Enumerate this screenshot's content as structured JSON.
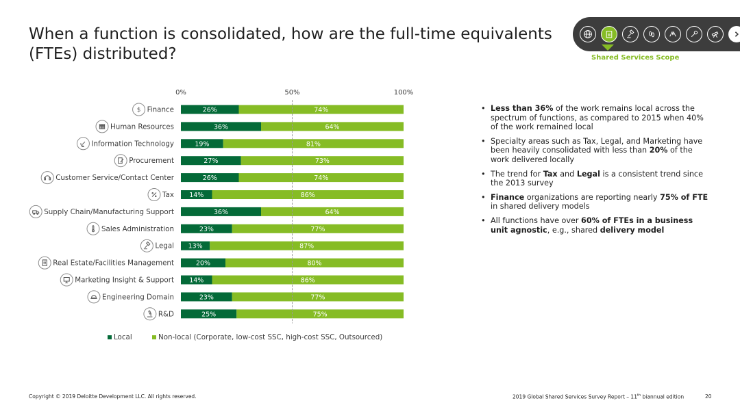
{
  "title": "When a function is consolidated, how are the full-time equivalents (FTEs) distributed?",
  "nav": {
    "icons": [
      "globe-icon",
      "clipboard-icon",
      "gavel-icon",
      "footprints-icon",
      "hands-icon",
      "wrench-icon",
      "telescope-icon",
      "chevron-right-icon"
    ],
    "active_index": 1,
    "label": "Shared Services Scope"
  },
  "colors": {
    "local": "#046a38",
    "nonlocal": "#86bc25",
    "nav_bg": "#3d3d3d"
  },
  "chart_data": {
    "type": "bar",
    "orientation": "horizontal",
    "stacked": true,
    "categories": [
      "Finance",
      "Human Resources",
      "Information Technology",
      "Procurement",
      "Customer Service/Contact Center",
      "Tax",
      "Supply Chain/Manufacturing Support",
      "Sales Administration",
      "Legal",
      "Real Estate/Facilities Management",
      "Marketing Insight & Support",
      "Engineering Domain",
      "R&D"
    ],
    "category_icons": [
      "dollar-icon",
      "people-icon",
      "satellite-icon",
      "document-pen-icon",
      "headset-icon",
      "percent-icon",
      "truck-icon",
      "thermometer-icon",
      "gavel-icon",
      "building-icon",
      "presentation-icon",
      "hardhat-icon",
      "microscope-icon"
    ],
    "series": [
      {
        "name": "Local",
        "values": [
          26,
          36,
          19,
          27,
          26,
          14,
          36,
          23,
          13,
          20,
          14,
          23,
          25
        ]
      },
      {
        "name": "Non-local (Corporate, low-cost SSC, high-cost SSC, Outsourced)",
        "values": [
          74,
          64,
          81,
          73,
          74,
          86,
          64,
          77,
          87,
          80,
          86,
          77,
          75
        ]
      }
    ],
    "value_suffix": "%",
    "xticks": [
      "0%",
      "50%",
      "100%"
    ],
    "xlim": [
      0,
      100
    ],
    "reference_line": 50,
    "legend_position": "bottom-left"
  },
  "bullets": [
    [
      {
        "b": "Less than 36%"
      },
      {
        "t": " of the work remains local across the spectrum of functions, as compared to 2015 when 40% of the work remained local"
      }
    ],
    [
      {
        "t": "Specialty areas such as Tax, Legal, and Marketing have been heavily consolidated with less than "
      },
      {
        "b": "20%"
      },
      {
        "t": " of the work delivered locally"
      }
    ],
    [
      {
        "t": "The trend for "
      },
      {
        "b": "Tax"
      },
      {
        "t": " and "
      },
      {
        "b": "Legal"
      },
      {
        "t": " is a consistent trend since the 2013 survey"
      }
    ],
    [
      {
        "b": "Finance"
      },
      {
        "t": " organizations are reporting nearly "
      },
      {
        "b": "75% of FTE"
      },
      {
        "t": " in shared delivery models"
      }
    ],
    [
      {
        "t": "All functions have over "
      },
      {
        "b": "60% of FTEs in a business unit agnostic"
      },
      {
        "t": ", e.g., shared "
      },
      {
        "b": "delivery model"
      }
    ]
  ],
  "footer": {
    "copyright": "Copyright © 2019 Deloitte Development LLC. All rights reserved.",
    "report_pre": "2019 Global Shared Services Survey Report – 11",
    "report_sup": "th",
    "report_post": " biannual edition",
    "page": "20"
  }
}
